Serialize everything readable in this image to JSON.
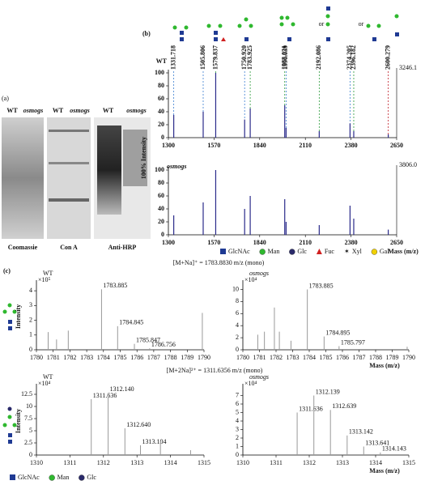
{
  "panel_a": {
    "label": "(a)",
    "lanes": [
      {
        "title": "Coomassie",
        "columns": [
          "WT",
          "osmogs"
        ]
      },
      {
        "title": "Con A",
        "columns": [
          "WT",
          "osmogs"
        ]
      },
      {
        "title": "Anti-HRP",
        "columns": [
          "WT",
          "osmogs"
        ]
      }
    ]
  },
  "panel_b": {
    "label": "(b)",
    "y_label": "100% Intensity",
    "x_label": "Mass (m/z)",
    "or_labels": [
      "or",
      "or"
    ],
    "legend": [
      {
        "name": "GlcNAc",
        "color": "#1f3a93",
        "shape": "square"
      },
      {
        "name": "Man",
        "color": "#2fb82f",
        "shape": "circle"
      },
      {
        "name": "Glc",
        "color": "#2a2a6a",
        "shape": "circle"
      },
      {
        "name": "Fuc",
        "color": "#d02020",
        "shape": "triangle"
      },
      {
        "name": "Xyl",
        "color": "#333333",
        "shape": "star"
      },
      {
        "name": "Gal",
        "color": "#f0d000",
        "shape": "circle"
      }
    ]
  },
  "panel_c": {
    "label": "(c)",
    "headers": [
      "[M+Na]⁺ = 1783.8830 m/z (mono)",
      "[M+2Na]²⁺ = 1311.6356 m/z (mono)"
    ],
    "y_label": "Intensity",
    "x_label": "Mass (m/z)",
    "legend": [
      {
        "name": "GlcNAc",
        "color": "#1f3a93",
        "shape": "square"
      },
      {
        "name": "Man",
        "color": "#2fb82f",
        "shape": "circle"
      },
      {
        "name": "Glc",
        "color": "#2a2a6a",
        "shape": "circle"
      }
    ]
  },
  "chart_data": [
    {
      "type": "spectrum",
      "name": "WT",
      "max_label": "3246.1",
      "color": "#2a2a8a",
      "xlim": [
        1300,
        2650
      ],
      "xticks": [
        1300,
        1570,
        1840,
        2110,
        2380,
        2650
      ],
      "ylim": [
        0,
        100
      ],
      "yticks": [
        0,
        20,
        40,
        60,
        80,
        100
      ],
      "x": [
        1331.718,
        1505.806,
        1579.837,
        1750.92,
        1783.925,
        1988.021,
        1996.039,
        2192.086,
        2374.205,
        2396.182,
        2600.279
      ],
      "values": [
        35,
        40,
        100,
        28,
        45,
        50,
        15,
        10,
        22,
        10,
        5
      ],
      "x_labels": [
        "1331.718",
        "1505.806",
        "1579.837",
        "1750.920",
        "1783.925",
        "1988.021",
        "1996.039",
        "2192.086",
        "2374.205",
        "2396.182",
        "2600.279"
      ],
      "label_colors": [
        "#3a7dd0",
        "#3a7dd0",
        "#2a9a3a",
        "#3a7dd0",
        "#2a9a3a",
        "#2a9a3a",
        "#3a7dd0",
        "#2a9a3a",
        "#3a7dd0",
        "#2a9a3a",
        "#c0202a"
      ]
    },
    {
      "type": "spectrum",
      "name": "osmogs",
      "max_label": "3806.0",
      "color": "#2a2a8a",
      "xlim": [
        1300,
        2650
      ],
      "xticks": [
        1300,
        1570,
        1840,
        2110,
        2380,
        2650
      ],
      "ylim": [
        0,
        100
      ],
      "yticks": [
        0,
        20,
        40,
        60,
        80,
        100
      ],
      "x": [
        1331.718,
        1505.806,
        1579.837,
        1750.92,
        1783.925,
        1988.021,
        1996.039,
        2192.086,
        2374.205,
        2396.182,
        2600.279
      ],
      "values": [
        30,
        50,
        100,
        40,
        60,
        55,
        20,
        15,
        45,
        25,
        8
      ]
    },
    {
      "type": "spectrum",
      "name": "WT",
      "scale_label": "×10⁵",
      "color": "#999999",
      "xlim": [
        1780,
        1790
      ],
      "xticks": [
        1780,
        1781,
        1782,
        1783,
        1784,
        1785,
        1786,
        1787,
        1788,
        1789,
        1790
      ],
      "ylim": [
        0,
        4.5
      ],
      "yticks": [
        0,
        1,
        2,
        3,
        4
      ],
      "x": [
        1780.7,
        1781.2,
        1781.9,
        1783.885,
        1784.845,
        1785.847,
        1786.756,
        1789.9
      ],
      "values": [
        1.2,
        0.7,
        1.3,
        4.1,
        1.6,
        0.4,
        0.1,
        2.5
      ],
      "x_labels": [
        null,
        null,
        null,
        "1783.885",
        "1784.845",
        "1785.847",
        "1786.756",
        null
      ]
    },
    {
      "type": "spectrum",
      "name": "osmogs",
      "scale_label": "×10⁴",
      "color": "#999999",
      "xlim": [
        1780,
        1790
      ],
      "xticks": [
        1780,
        1781,
        1782,
        1783,
        1784,
        1785,
        1786,
        1787,
        1788,
        1789,
        1790
      ],
      "ylim": [
        0,
        11
      ],
      "yticks": [
        0,
        2,
        4,
        6,
        8,
        10
      ],
      "x": [
        1780.9,
        1781.3,
        1781.9,
        1782.2,
        1782.9,
        1783.885,
        1784.895,
        1785.797,
        1789.9
      ],
      "values": [
        2.5,
        3,
        7,
        3,
        1.5,
        10,
        2.2,
        0.6,
        0.5
      ],
      "x_labels": [
        null,
        null,
        null,
        null,
        null,
        "1783.885",
        "1784.895",
        "1785.797",
        null
      ]
    },
    {
      "type": "spectrum",
      "name": "WT",
      "scale_label": "×10⁴",
      "color": "#999999",
      "xlim": [
        1310,
        1315
      ],
      "xticks": [
        1310,
        1311,
        1312,
        1313,
        1314,
        1315
      ],
      "ylim": [
        0,
        14
      ],
      "yticks": [
        0,
        2.5,
        5,
        7.5,
        10,
        12.5
      ],
      "x": [
        1311.636,
        1312.14,
        1312.64,
        1313.104,
        1313.7,
        1314.6
      ],
      "values": [
        11.5,
        12.8,
        5.5,
        2,
        2.8,
        1
      ],
      "x_labels": [
        "1311.636",
        "1312.140",
        "1312.640",
        "1313.104",
        null,
        null
      ]
    },
    {
      "type": "spectrum",
      "name": "osmogs",
      "scale_label": "×10⁴",
      "color": "#999999",
      "xlim": [
        1310,
        1315
      ],
      "xticks": [
        1310,
        1311,
        1312,
        1313,
        1314,
        1315
      ],
      "ylim": [
        0,
        8
      ],
      "yticks": [
        0,
        1,
        2,
        3,
        4,
        5,
        6,
        7
      ],
      "x": [
        1311.636,
        1312.139,
        1312.639,
        1313.142,
        1313.641,
        1314.143
      ],
      "values": [
        5,
        7,
        5.3,
        2.3,
        1,
        0.3
      ],
      "x_labels": [
        "1311.636",
        "1312.139",
        "1312.639",
        "1313.142",
        "1313.641",
        "1314.143"
      ]
    }
  ]
}
